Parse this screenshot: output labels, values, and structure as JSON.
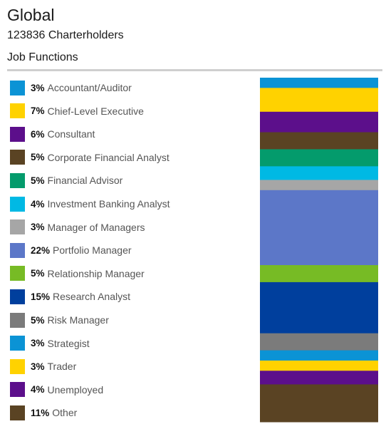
{
  "header": {
    "title": "Global",
    "subtitle": "123836 Charterholders",
    "section": "Job Functions"
  },
  "chart_data": {
    "type": "bar",
    "stacked": true,
    "orientation": "vertical",
    "title": "Job Functions",
    "categories": [
      "Accountant/Auditor",
      "Chief-Level Executive",
      "Consultant",
      "Corporate Financial Analyst",
      "Financial Advisor",
      "Investment Banking Analyst",
      "Manager of Managers",
      "Portfolio Manager",
      "Relationship Manager",
      "Research Analyst",
      "Risk Manager",
      "Strategist",
      "Trader",
      "Unemployed",
      "Other"
    ],
    "series": [
      {
        "name": "Accountant/Auditor",
        "value": 3,
        "label": "3%",
        "color": "#0b93d5"
      },
      {
        "name": "Chief-Level Executive",
        "value": 7,
        "label": "7%",
        "color": "#ffd200"
      },
      {
        "name": "Consultant",
        "value": 6,
        "label": "6%",
        "color": "#5c0f8b"
      },
      {
        "name": "Corporate Financial Analyst",
        "value": 5,
        "label": "5%",
        "color": "#5a4323"
      },
      {
        "name": "Financial Advisor",
        "value": 5,
        "label": "5%",
        "color": "#049b6c"
      },
      {
        "name": "Investment Banking Analyst",
        "value": 4,
        "label": "4%",
        "color": "#00b9e4"
      },
      {
        "name": "Manager of Managers",
        "value": 3,
        "label": "3%",
        "color": "#a6a6a6"
      },
      {
        "name": "Portfolio Manager",
        "value": 22,
        "label": "22%",
        "color": "#5c77c8"
      },
      {
        "name": "Relationship Manager",
        "value": 5,
        "label": "5%",
        "color": "#77bb25"
      },
      {
        "name": "Research Analyst",
        "value": 15,
        "label": "15%",
        "color": "#003f9d"
      },
      {
        "name": "Risk Manager",
        "value": 5,
        "label": "5%",
        "color": "#7b7b7b"
      },
      {
        "name": "Strategist",
        "value": 3,
        "label": "3%",
        "color": "#0b93d5"
      },
      {
        "name": "Trader",
        "value": 3,
        "label": "3%",
        "color": "#ffd200"
      },
      {
        "name": "Unemployed",
        "value": 4,
        "label": "4%",
        "color": "#5c0f8b"
      },
      {
        "name": "Other",
        "value": 11,
        "label": "11%",
        "color": "#5a4323"
      }
    ],
    "legend_placement": "left",
    "grid": false
  }
}
